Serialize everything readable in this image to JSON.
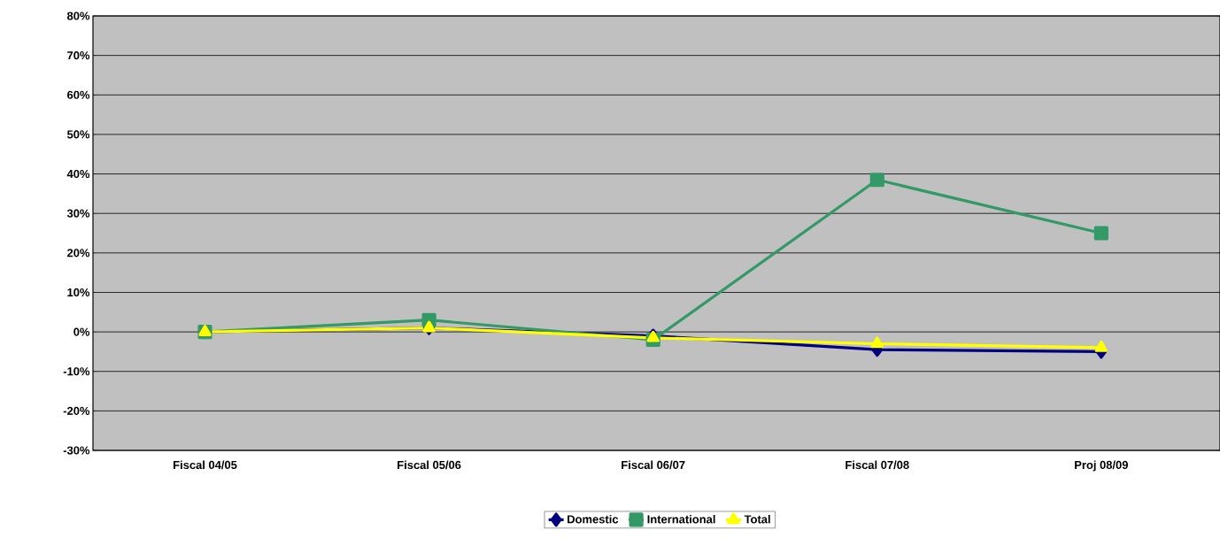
{
  "chart_data": {
    "type": "line",
    "categories": [
      "Fiscal 04/05",
      "Fiscal 05/06",
      "Fiscal 06/07",
      "Fiscal 07/08",
      "Proj 08/09"
    ],
    "series": [
      {
        "name": "Domestic",
        "color": "#000080",
        "marker": "diamond",
        "values": [
          0,
          1,
          -1,
          -4.5,
          -5
        ]
      },
      {
        "name": "International",
        "color": "#339966",
        "marker": "square",
        "values": [
          0,
          3,
          -2,
          38.5,
          25
        ]
      },
      {
        "name": "Total",
        "color": "#ffff00",
        "marker": "triangle",
        "values": [
          0,
          1,
          -1.5,
          -3,
          -4
        ]
      }
    ],
    "ylim": [
      -30,
      80
    ],
    "yticks": [
      {
        "value": -30,
        "label": "-30%"
      },
      {
        "value": -20,
        "label": "-20%"
      },
      {
        "value": -10,
        "label": "-10%"
      },
      {
        "value": 0,
        "label": "0%"
      },
      {
        "value": 10,
        "label": "10%"
      },
      {
        "value": 20,
        "label": "20%"
      },
      {
        "value": 30,
        "label": "30%"
      },
      {
        "value": 40,
        "label": "40%"
      },
      {
        "value": 50,
        "label": "50%"
      },
      {
        "value": 60,
        "label": "60%"
      },
      {
        "value": 70,
        "label": "70%"
      },
      {
        "value": 80,
        "label": "80%"
      }
    ],
    "grid": "y",
    "legend": "bottom",
    "line_style": "solid"
  }
}
